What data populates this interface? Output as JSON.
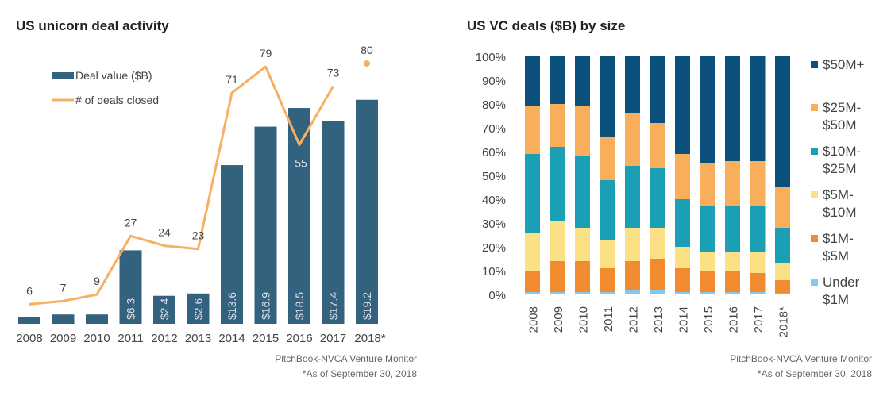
{
  "chart_data": [
    {
      "type": "bar+line",
      "title": "US unicorn deal activity",
      "categories": [
        "2008",
        "2009",
        "2010",
        "2011",
        "2012",
        "2013",
        "2014",
        "2015",
        "2016",
        "2017",
        "2018*"
      ],
      "series": [
        {
          "name": "Deal value ($B)",
          "type": "bar",
          "color": "#33627f",
          "values": [
            0.6,
            0.8,
            0.8,
            6.3,
            2.4,
            2.6,
            13.6,
            16.9,
            18.5,
            17.4,
            19.2
          ],
          "labels": [
            "",
            "",
            "",
            "$6.3",
            "$2.4",
            "$2.6",
            "$13.6",
            "$16.9",
            "$18.5",
            "$17.4",
            "$19.2"
          ]
        },
        {
          "name": "# of deals closed",
          "type": "line",
          "color": "#f7b062",
          "values": [
            6,
            7,
            9,
            27,
            24,
            23,
            71,
            79,
            55,
            73,
            80
          ],
          "labels": [
            "6",
            "7",
            "9",
            "27",
            "24",
            "23",
            "71",
            "79",
            "55",
            "73",
            "80"
          ],
          "note": "2018* shown as a separate point"
        }
      ],
      "legend": "top-left",
      "grid": false,
      "source": "PitchBook-NVCA Venture Monitor",
      "footnote": "*As of September 30, 2018"
    },
    {
      "type": "stacked-bar",
      "title": "US VC deals ($B) by size",
      "categories": [
        "2008",
        "2009",
        "2010",
        "2011",
        "2012",
        "2013",
        "2014",
        "2015",
        "2016",
        "2017",
        "2018*"
      ],
      "yticks": [
        "0%",
        "10%",
        "20%",
        "30%",
        "40%",
        "50%",
        "60%",
        "70%",
        "80%",
        "90%",
        "100%"
      ],
      "ylim": [
        0,
        100
      ],
      "series": [
        {
          "name": "Under $1M",
          "color": "#85c8ee",
          "values": [
            1,
            1,
            1,
            1,
            2,
            2,
            1,
            1,
            1,
            1,
            0.5
          ]
        },
        {
          "name": "$1M-$5M",
          "color": "#f28a30",
          "values": [
            9,
            13,
            13,
            10,
            12,
            13,
            10,
            9,
            9,
            8,
            5.5
          ]
        },
        {
          "name": "$5M-$10M",
          "color": "#fbe085",
          "values": [
            16,
            17,
            14,
            12,
            14,
            13,
            9,
            8,
            8,
            9,
            7
          ]
        },
        {
          "name": "$10M-$25M",
          "color": "#1b9fb5",
          "values": [
            33,
            31,
            30,
            25,
            26,
            25,
            20,
            19,
            19,
            19,
            15
          ]
        },
        {
          "name": "$25M-$50M",
          "color": "#f9ae5c",
          "values": [
            20,
            18,
            21,
            18,
            22,
            19,
            19,
            18,
            19,
            19,
            17
          ]
        },
        {
          "name": "$50M+",
          "color": "#0b4f7c",
          "values": [
            21,
            20,
            21,
            34,
            24,
            28,
            41,
            45,
            44,
            44,
            55
          ]
        }
      ],
      "legend_lines": [
        [
          "$50M+"
        ],
        [
          "$25M-",
          "$50M"
        ],
        [
          "$10M-",
          "$25M"
        ],
        [
          "$5M-",
          "$10M"
        ],
        [
          "$1M-",
          "$5M"
        ],
        [
          "Under",
          "$1M"
        ]
      ],
      "legend": "right",
      "grid": false,
      "source": "PitchBook-NVCA Venture Monitor",
      "footnote": "*As of September 30, 2018"
    }
  ]
}
